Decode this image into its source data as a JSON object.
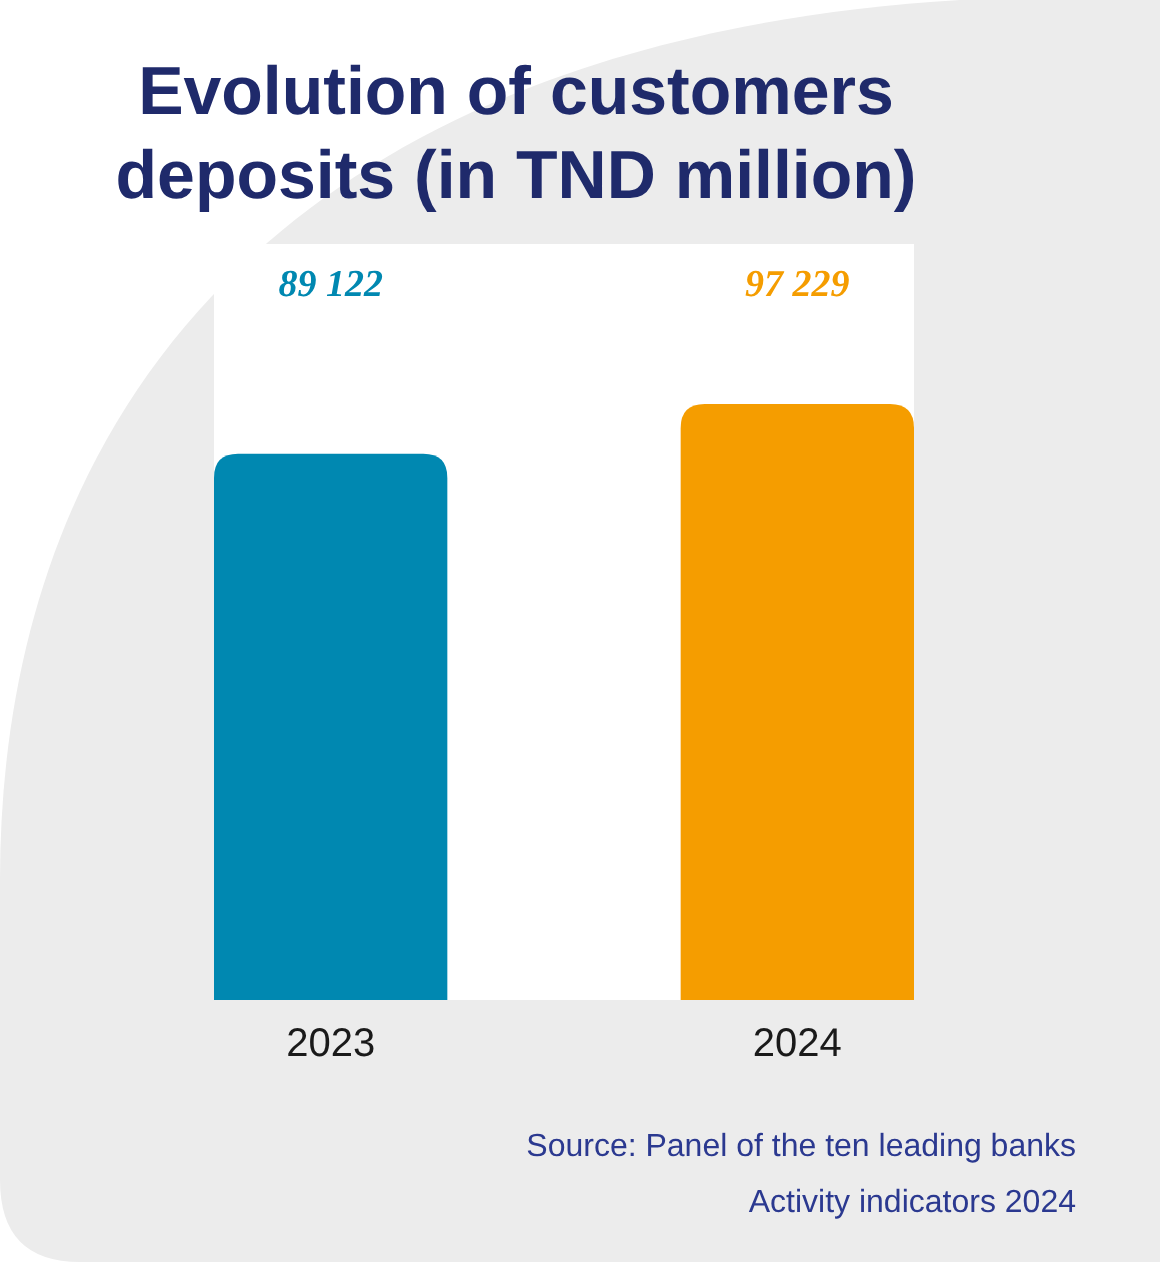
{
  "chart_data": {
    "type": "bar",
    "title": "Evolution of customers deposits (in TND million)",
    "categories": [
      "2023",
      "2024"
    ],
    "values": [
      89122,
      97229
    ],
    "value_labels": [
      "89 122",
      "97 229"
    ],
    "colors": [
      "#0088b1",
      "#f59d00"
    ],
    "annotations": [
      "Source: Panel of the ten leading banks",
      "Activity indicators 2024"
    ]
  }
}
